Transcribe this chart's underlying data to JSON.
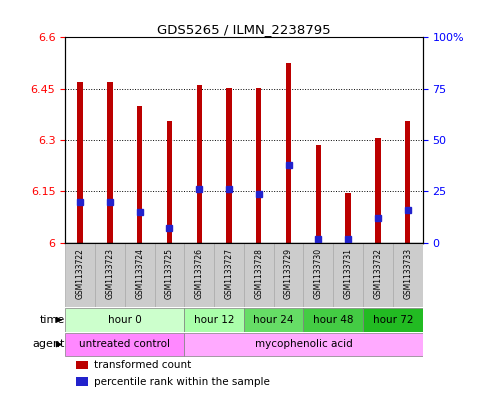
{
  "title": "GDS5265 / ILMN_2238795",
  "samples": [
    "GSM1133722",
    "GSM1133723",
    "GSM1133724",
    "GSM1133725",
    "GSM1133726",
    "GSM1133727",
    "GSM1133728",
    "GSM1133729",
    "GSM1133730",
    "GSM1133731",
    "GSM1133732",
    "GSM1133733"
  ],
  "transformed_counts": [
    6.47,
    6.47,
    6.4,
    6.355,
    6.462,
    6.453,
    6.452,
    6.525,
    6.285,
    6.145,
    6.305,
    6.355
  ],
  "percentile_ranks": [
    20,
    20,
    15,
    7,
    26,
    26,
    24,
    38,
    2,
    2,
    12,
    16
  ],
  "ymin": 6.0,
  "ymax": 6.6,
  "yticks": [
    6.0,
    6.15,
    6.3,
    6.45,
    6.6
  ],
  "ytick_labels": [
    "6",
    "6.15",
    "6.3",
    "6.45",
    "6.6"
  ],
  "right_yticks": [
    0,
    25,
    50,
    75,
    100
  ],
  "right_ytick_labels": [
    "0",
    "25",
    "50",
    "75",
    "100%"
  ],
  "bar_color": "#bb0000",
  "dot_color": "#2222cc",
  "grid_color": "#000000",
  "bar_width": 0.18,
  "time_groups": [
    {
      "label": "hour 0",
      "start": 0,
      "end": 3,
      "color": "#ccffcc"
    },
    {
      "label": "hour 12",
      "start": 4,
      "end": 5,
      "color": "#aaffaa"
    },
    {
      "label": "hour 24",
      "start": 6,
      "end": 7,
      "color": "#66dd66"
    },
    {
      "label": "hour 48",
      "start": 8,
      "end": 9,
      "color": "#44cc44"
    },
    {
      "label": "hour 72",
      "start": 10,
      "end": 11,
      "color": "#22bb22"
    }
  ],
  "agent_groups": [
    {
      "label": "untreated control",
      "start": 0,
      "end": 3,
      "color": "#ff88ff"
    },
    {
      "label": "mycophenolic acid",
      "start": 4,
      "end": 11,
      "color": "#ffaaff"
    }
  ],
  "legend_bar_label": "transformed count",
  "legend_dot_label": "percentile rank within the sample",
  "bg_color": "#ffffff",
  "plot_bg": "#ffffff",
  "sample_box_color": "#cccccc",
  "sample_box_edge": "#aaaaaa"
}
